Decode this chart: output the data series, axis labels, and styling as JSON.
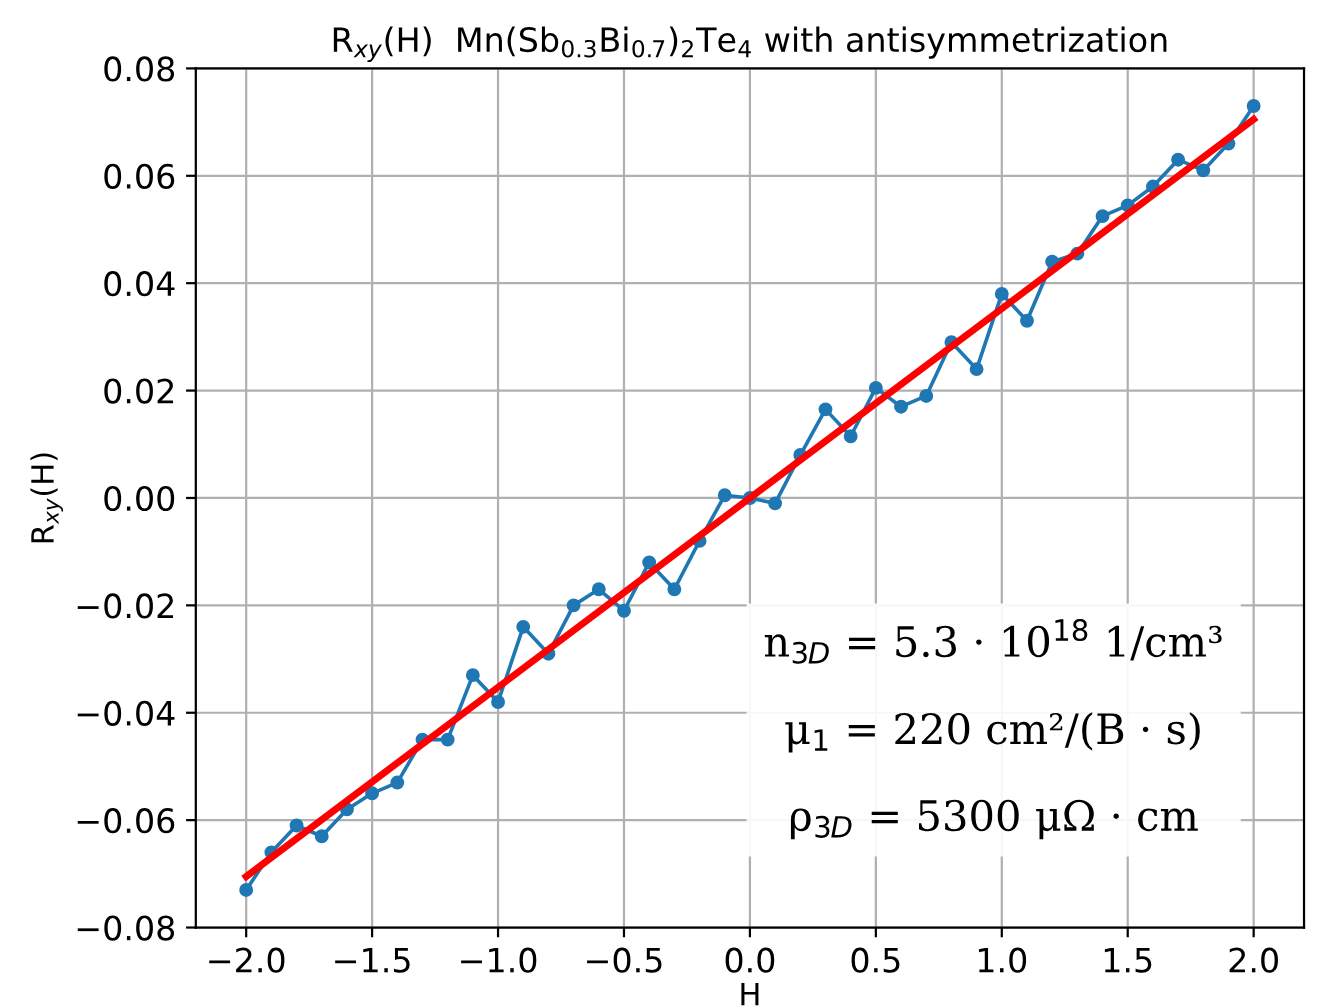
{
  "chart_data": {
    "type": "line",
    "title": "R$_{xy}$(H)  Mn(Sb$_{0.3}$Bi$_{0.7}$)$_{2}$Te$_{4}$ with antisymmetrization",
    "xlabel": "H",
    "ylabel": "R$_{xy}$(H)",
    "x": [
      -2.0,
      -1.9,
      -1.8,
      -1.7,
      -1.6,
      -1.5,
      -1.4,
      -1.3,
      -1.2,
      -1.1,
      -1.0,
      -0.9,
      -0.8,
      -0.7,
      -0.6,
      -0.5,
      -0.4,
      -0.3,
      -0.2,
      -0.1,
      0.0,
      0.1,
      0.2,
      0.3,
      0.4,
      0.5,
      0.6,
      0.7,
      0.8,
      0.9,
      1.0,
      1.1,
      1.2,
      1.3,
      1.4,
      1.5,
      1.6,
      1.7,
      1.8,
      1.9,
      2.0
    ],
    "series": [
      {
        "color": "#1f77b4",
        "marker": "circle",
        "values": [
          -0.073,
          -0.066,
          -0.061,
          -0.063,
          -0.058,
          -0.055,
          -0.053,
          -0.045,
          -0.045,
          -0.033,
          -0.038,
          -0.024,
          -0.029,
          -0.02,
          -0.017,
          -0.021,
          -0.012,
          -0.017,
          -0.008,
          0.0005,
          0.0,
          -0.001,
          0.008,
          0.0165,
          0.0115,
          0.0205,
          0.017,
          0.019,
          0.029,
          0.024,
          0.038,
          0.033,
          0.044,
          0.0455,
          0.0525,
          0.0545,
          0.058,
          0.063,
          0.061,
          0.066,
          0.073
        ]
      },
      {
        "color": "#ff0000",
        "marker": "none",
        "x": [
          -2.0,
          2.0
        ],
        "values": [
          -0.0705,
          0.0705
        ]
      }
    ],
    "xlim": [
      -2.2,
      2.2
    ],
    "ylim": [
      -0.08,
      0.08
    ],
    "xticks": [
      {
        "value": -2.0,
        "label": "−2.0"
      },
      {
        "value": -1.5,
        "label": "−1.5"
      },
      {
        "value": -1.0,
        "label": "−1.0"
      },
      {
        "value": -0.5,
        "label": "−0.5"
      },
      {
        "value": 0.0,
        "label": "0.0"
      },
      {
        "value": 0.5,
        "label": "0.5"
      },
      {
        "value": 1.0,
        "label": "1.0"
      },
      {
        "value": 1.5,
        "label": "1.5"
      },
      {
        "value": 2.0,
        "label": "2.0"
      }
    ],
    "yticks": [
      {
        "value": -0.08,
        "label": "−0.08"
      },
      {
        "value": -0.06,
        "label": "−0.06"
      },
      {
        "value": -0.04,
        "label": "−0.04"
      },
      {
        "value": -0.02,
        "label": "−0.02"
      },
      {
        "value": 0.0,
        "label": "0.00"
      },
      {
        "value": 0.02,
        "label": "0.02"
      },
      {
        "value": 0.04,
        "label": "0.04"
      },
      {
        "value": 0.06,
        "label": "0.06"
      },
      {
        "value": 0.08,
        "label": "0.08"
      }
    ],
    "grid": true,
    "annotations": [
      "n$_{3D}$ = 5.3 · 10$^{18}$ 1/cm³",
      "μ$_{1}$ = 220 cm²/(B · s)",
      "ρ$_{3D}$ = 5300 μΩ · cm"
    ]
  }
}
